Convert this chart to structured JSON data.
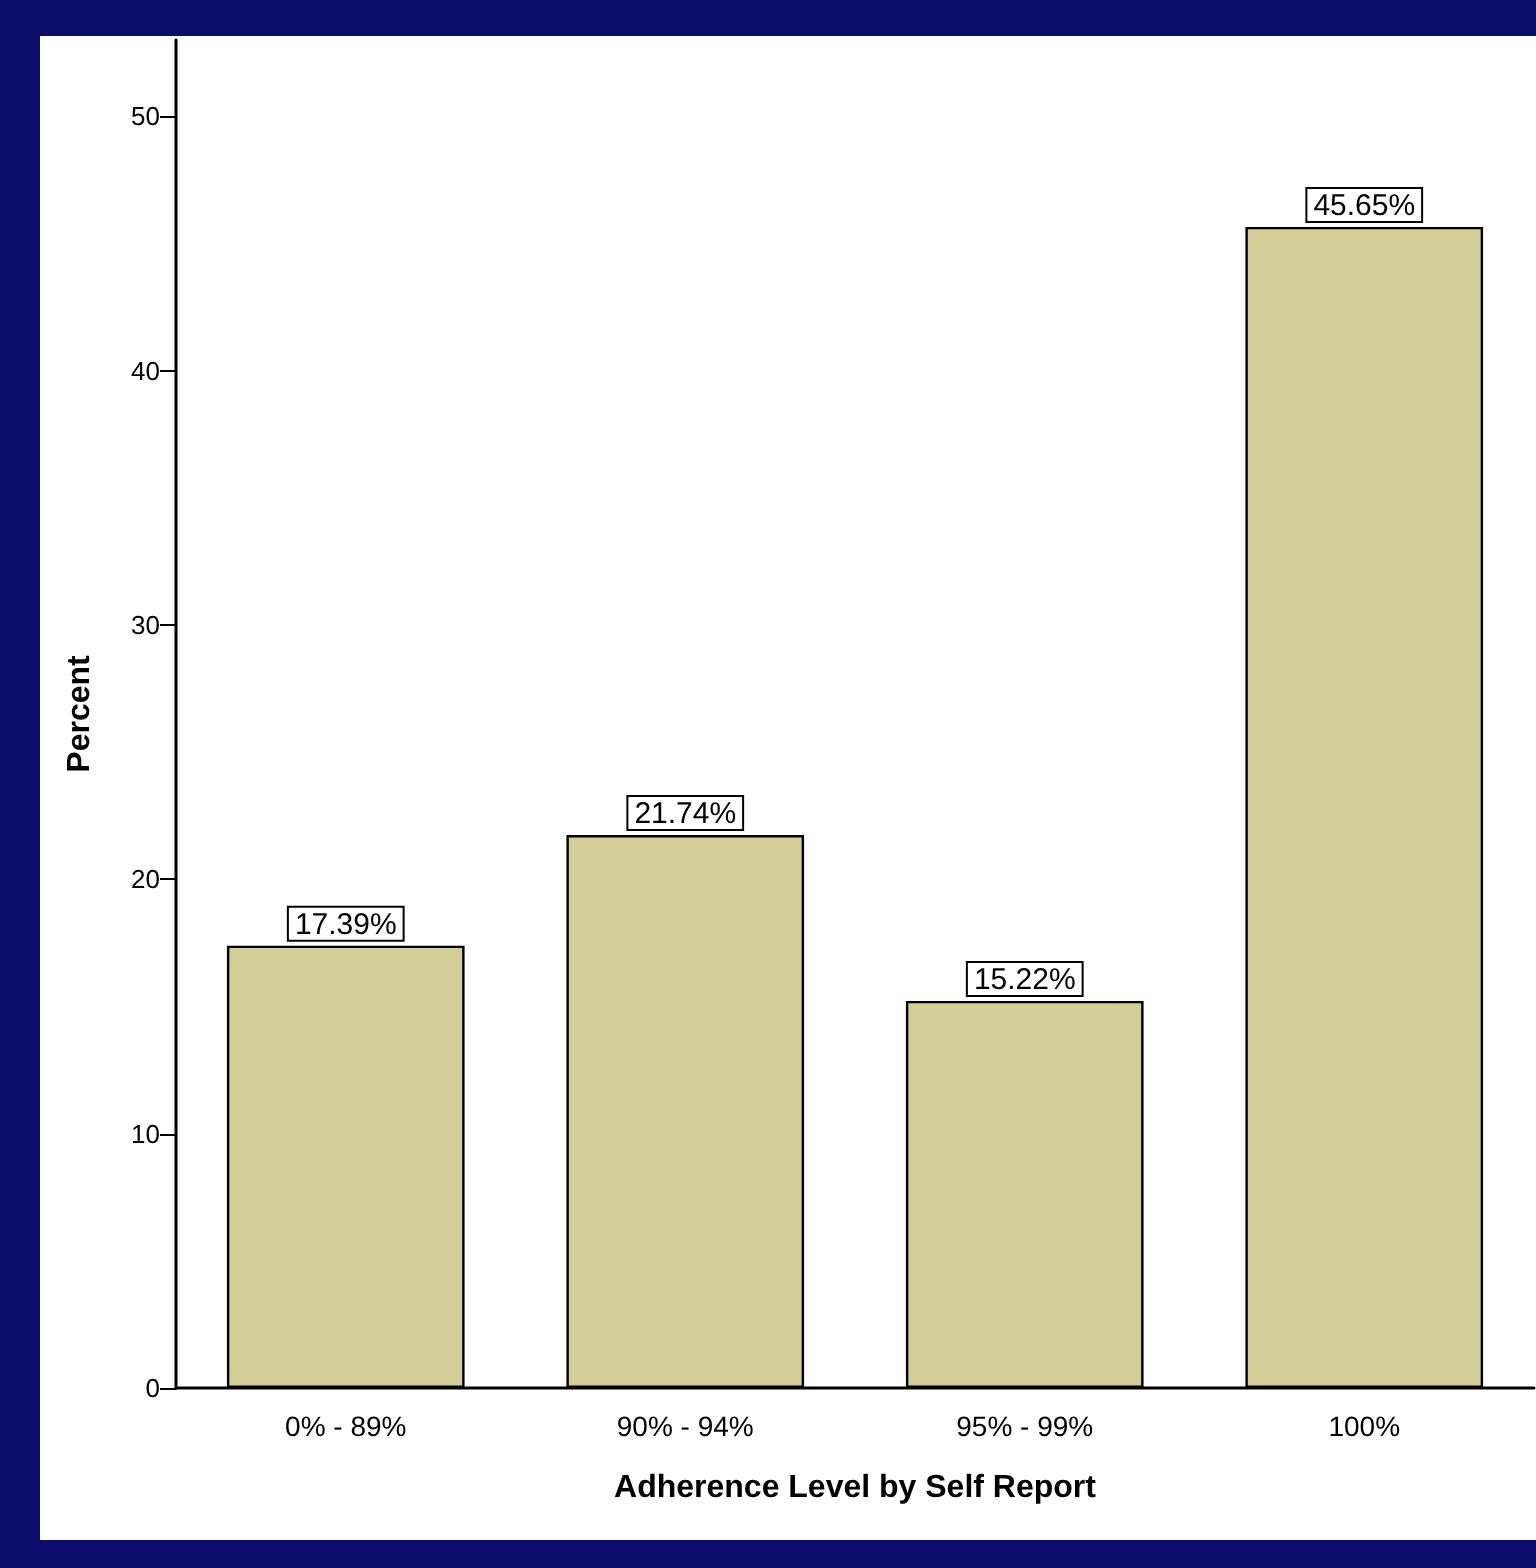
{
  "chart_data": {
    "type": "bar",
    "xlabel": "Adherence Level by Self Report",
    "ylabel": "Percent",
    "categories": [
      "0% - 89%",
      "90% - 94%",
      "95% - 99%",
      "100%"
    ],
    "values": [
      17.39,
      21.74,
      15.22,
      45.65
    ],
    "value_labels": [
      "17.39%",
      "21.74%",
      "15.22%",
      "45.65%"
    ],
    "color": "#d3cd98",
    "ylim": [
      0,
      53
    ],
    "yticks": [
      0,
      10,
      20,
      30,
      40,
      50
    ],
    "grid": false
  }
}
